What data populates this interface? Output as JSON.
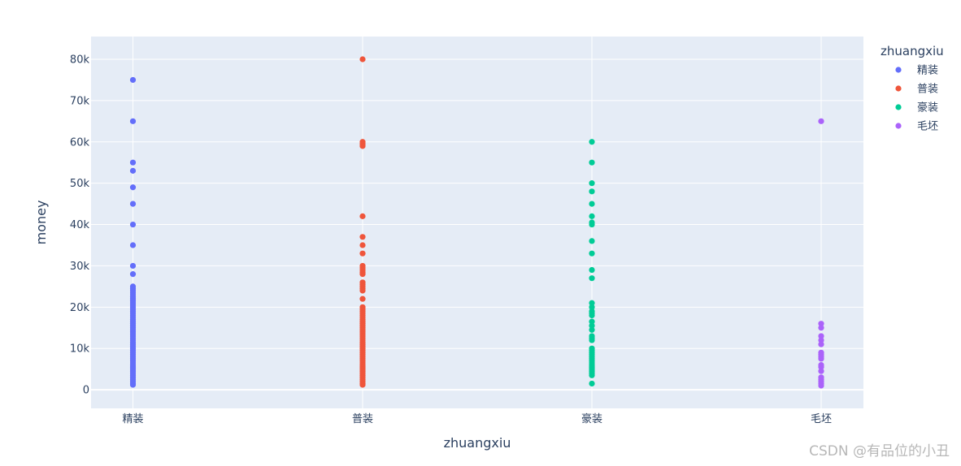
{
  "chart_data": {
    "type": "scatter",
    "xlabel": "zhuangxiu",
    "ylabel": "money",
    "categories": [
      "精装",
      "普装",
      "豪装",
      "毛坯"
    ],
    "ylim": [
      -4500,
      85500
    ],
    "yticks": [
      0,
      10000,
      20000,
      30000,
      40000,
      50000,
      60000,
      70000,
      80000
    ],
    "ytick_labels": [
      "0",
      "10k",
      "20k",
      "30k",
      "40k",
      "50k",
      "60k",
      "70k",
      "80k"
    ],
    "grid": true,
    "legend": {
      "title": "zhuangxiu",
      "placement": "top-right"
    },
    "series": [
      {
        "name": "精装",
        "color": "#636efa",
        "category": "精装",
        "values": [
          75000,
          65000,
          55000,
          53000,
          49000,
          45000,
          40000,
          35000,
          30000,
          28000,
          25000,
          24500,
          24000,
          23500,
          23000,
          22500,
          22000,
          21500,
          21000,
          20500,
          20000,
          19500,
          19000,
          18500,
          18000,
          17500,
          17000,
          16500,
          16000,
          15500,
          15000,
          14500,
          14000,
          13500,
          13000,
          12500,
          12000,
          11500,
          11000,
          10500,
          10000,
          9500,
          9000,
          8500,
          8000,
          7500,
          7000,
          6500,
          6000,
          5500,
          5000,
          4500,
          4000,
          3500,
          3000,
          2500,
          2000,
          1500,
          1200
        ]
      },
      {
        "name": "普装",
        "color": "#ef553b",
        "category": "普装",
        "values": [
          80000,
          60000,
          59500,
          59000,
          42000,
          37000,
          35000,
          33000,
          30000,
          29500,
          29000,
          28500,
          28000,
          26000,
          25500,
          25000,
          24500,
          24000,
          22000,
          20000,
          19500,
          19000,
          18500,
          18000,
          17500,
          17000,
          16500,
          16000,
          15500,
          15000,
          14500,
          14000,
          13500,
          13000,
          12500,
          12000,
          11500,
          11000,
          10500,
          10000,
          9500,
          9000,
          8500,
          8000,
          7500,
          7000,
          6500,
          6000,
          5500,
          5000,
          4500,
          4000,
          3500,
          3000,
          2500,
          2000,
          1500,
          1200
        ]
      },
      {
        "name": "豪装",
        "color": "#00cc96",
        "category": "豪装",
        "values": [
          60000,
          55000,
          50000,
          48000,
          45000,
          42000,
          40500,
          40000,
          36000,
          33000,
          29000,
          27000,
          21000,
          20000,
          19000,
          18500,
          18000,
          16500,
          15500,
          14500,
          13000,
          12500,
          12000,
          10000,
          9500,
          9000,
          8500,
          8000,
          7500,
          7000,
          6500,
          6000,
          5500,
          5000,
          4500,
          4000,
          3500,
          1500
        ]
      },
      {
        "name": "毛坯",
        "color": "#ab63fa",
        "category": "毛坯",
        "values": [
          65000,
          16000,
          15000,
          13000,
          12000,
          11000,
          9000,
          8500,
          8000,
          7500,
          6000,
          5500,
          4500,
          3000,
          2500,
          2000,
          1500,
          1000
        ]
      }
    ]
  },
  "watermark": "CSDN @有品位的小丑"
}
